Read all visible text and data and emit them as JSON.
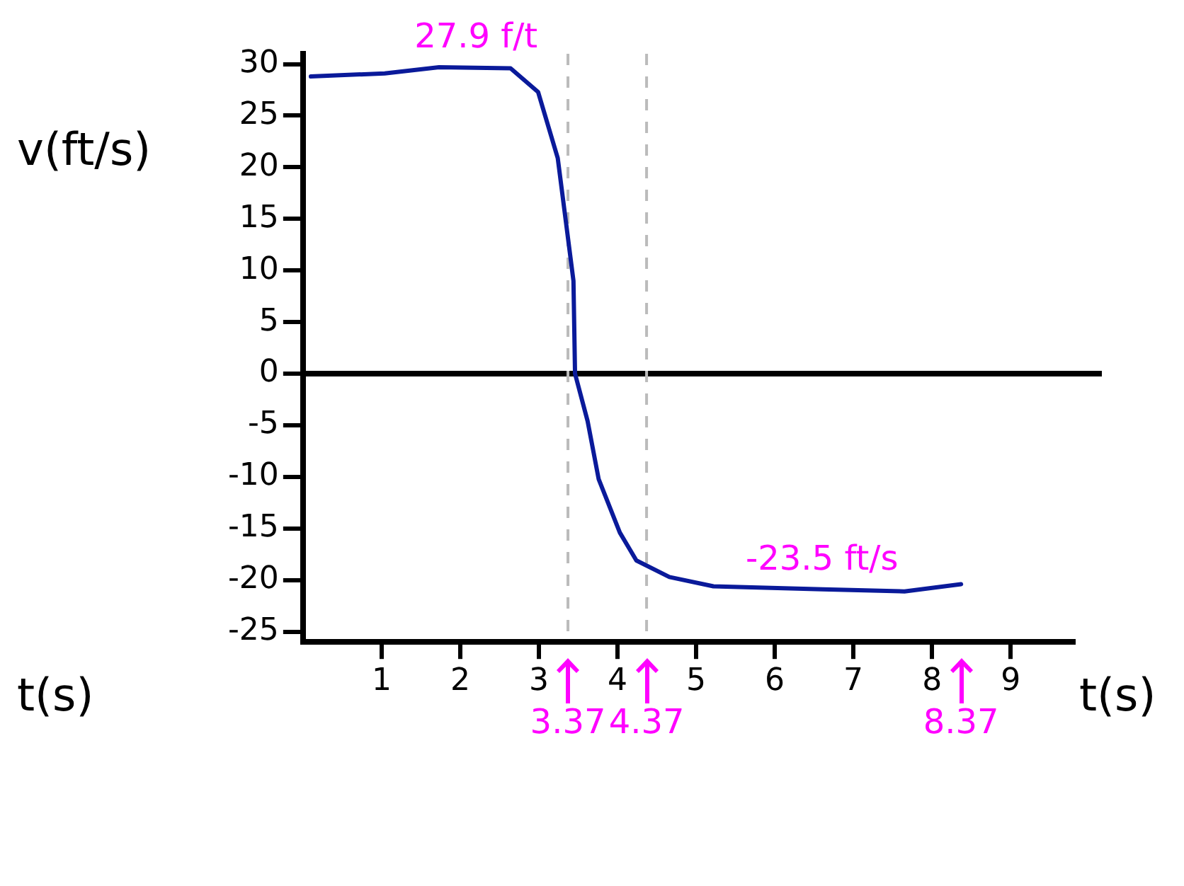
{
  "chart_data": {
    "type": "line",
    "ylabel": "v(ft/s)",
    "xlabel": "t(s)",
    "x": [
      0.1,
      1.04,
      1.73,
      2.64,
      2.99,
      3.24,
      3.44,
      3.46,
      3.62,
      3.76,
      4.03,
      4.24,
      4.66,
      5.22,
      6.61,
      7.65,
      8.37
    ],
    "series": [
      {
        "color": "#0a1a9a",
        "values": [
          28.8,
          29.1,
          29.7,
          29.6,
          27.3,
          20.9,
          9.0,
          0,
          -4.6,
          -10.2,
          -15.4,
          -18.1,
          -19.7,
          -20.6,
          -20.9,
          -21.1,
          -20.4
        ]
      }
    ],
    "xlim": [
      0,
      9.8
    ],
    "xticks": [
      1,
      2,
      3,
      4,
      5,
      6,
      7,
      8,
      9
    ],
    "ylim": [
      -26,
      31
    ],
    "yticks": [
      30,
      25,
      20,
      15,
      10,
      5,
      0,
      -5,
      -10,
      -15,
      -20,
      -25
    ],
    "grid": false,
    "legend": false,
    "marker": "none",
    "line_style": "solid",
    "ref_lines": [
      {
        "axis": "y",
        "value": 0,
        "label": null,
        "color": "#000000",
        "line_style": "solid"
      },
      {
        "axis": "x",
        "value": 3.37,
        "label": "3.37",
        "color": "#bbbbbb",
        "line_style": "dashed"
      },
      {
        "axis": "x",
        "value": 4.37,
        "label": "4.37",
        "color": "#bbbbbb",
        "line_style": "dashed"
      }
    ],
    "annotations": [
      {
        "text": "27.9 f/t",
        "x": 2.2,
        "y": 29.7
      },
      {
        "text": "-23.5 ft/s",
        "x": 6.6,
        "y": -20.9
      },
      "8.37",
      "t(s)"
    ]
  }
}
